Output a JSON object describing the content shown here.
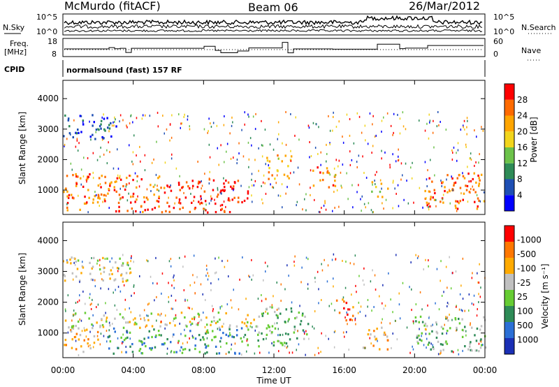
{
  "header": {
    "station": "McMurdo (fitACF)",
    "beam": "Beam 06",
    "date": "26/Mar/2012"
  },
  "params": {
    "nsky_label": "N.Sky",
    "nsearch_label": "N.Search",
    "freq_label_1": "Freq.",
    "freq_label_2": "[MHz]",
    "nave_label": "Nave",
    "cpid_label": "CPID",
    "cpid_text": "normalsound (fast) 157 RF",
    "noise_left_ticks": [
      "10^5",
      "10^0"
    ],
    "noise_right_ticks": [
      "10^5",
      "10^0"
    ],
    "freq_ticks": [
      "18",
      "8"
    ],
    "nave_ticks": [
      "60",
      "0"
    ]
  },
  "colors": {
    "power_scale": [
      "#0000ff",
      "#1e4fb4",
      "#2e8b57",
      "#6cc24a",
      "#f2d51c",
      "#ffa500",
      "#ff6a00",
      "#ff0000"
    ],
    "velocity_scale": [
      "#1a2fb5",
      "#2b6fd6",
      "#2e8b57",
      "#66cc33",
      "#c0c0c0",
      "#ffaa00",
      "#ff7700",
      "#ff0000"
    ]
  },
  "chart_data": [
    {
      "type": "heatmap",
      "name": "power",
      "ylabel": "Slant Range [km]",
      "yticks": [
        "1000",
        "2000",
        "3000",
        "4000"
      ],
      "ylim": [
        200,
        4600
      ],
      "xlim": [
        0,
        24
      ],
      "colorbar_label": "Power [dB]",
      "colorbar_ticks": [
        "4",
        "8",
        "12",
        "16",
        "20",
        "24",
        "28"
      ],
      "bands": [
        {
          "t0": 0.0,
          "t1": 2.5,
          "r0": 300,
          "r1": 1600,
          "level": 6
        },
        {
          "t0": 2.5,
          "t1": 6.0,
          "r0": 300,
          "r1": 1500,
          "level": 6
        },
        {
          "t0": 6.0,
          "t1": 10.5,
          "r0": 300,
          "r1": 1400,
          "level": 7
        },
        {
          "t0": 11.5,
          "t1": 13.0,
          "r0": 1400,
          "r1": 2200,
          "level": 5
        },
        {
          "t0": 14.0,
          "t1": 15.5,
          "r0": 1100,
          "r1": 1800,
          "level": 6
        },
        {
          "t0": 17.5,
          "t1": 18.5,
          "r0": 800,
          "r1": 1300,
          "level": 4
        },
        {
          "t0": 20.5,
          "t1": 24.0,
          "r0": 400,
          "r1": 1600,
          "level": 6
        },
        {
          "t0": 0.0,
          "t1": 3.0,
          "r0": 2700,
          "r1": 3500,
          "level": 1
        }
      ]
    },
    {
      "type": "heatmap",
      "name": "velocity",
      "ylabel": "Slant Range [km]",
      "yticks": [
        "1000",
        "2000",
        "3000",
        "4000"
      ],
      "ylim": [
        200,
        4600
      ],
      "xlim": [
        0,
        24
      ],
      "xlabel": "Time UT",
      "xticks": [
        "00:00",
        "04:00",
        "08:00",
        "12:00",
        "16:00",
        "20:00",
        "00:00"
      ],
      "colorbar_label": "Velocity [m s⁻¹]",
      "colorbar_ticks": [
        "1000",
        "500",
        "100",
        "25",
        "-25",
        "-100",
        "-500",
        "-1000"
      ],
      "bands": [
        {
          "t0": 0.0,
          "t1": 2.0,
          "r0": 400,
          "r1": 1200,
          "level": 5
        },
        {
          "t0": 0.0,
          "t1": 11.0,
          "r0": 1200,
          "r1": 1700,
          "level": 4
        },
        {
          "t0": 2.5,
          "t1": 10.5,
          "r0": 350,
          "r1": 1200,
          "level": 2
        },
        {
          "t0": 11.0,
          "t1": 14.0,
          "r0": 600,
          "r1": 1900,
          "level": 3
        },
        {
          "t0": 15.5,
          "t1": 16.5,
          "r0": 1400,
          "r1": 2200,
          "level": 6
        },
        {
          "t0": 17.0,
          "t1": 18.5,
          "r0": 500,
          "r1": 1300,
          "level": 5
        },
        {
          "t0": 20.0,
          "t1": 24.0,
          "r0": 400,
          "r1": 1600,
          "level": 3
        },
        {
          "t0": 0.0,
          "t1": 4.0,
          "r0": 2700,
          "r1": 3500,
          "level": 4
        }
      ]
    }
  ]
}
